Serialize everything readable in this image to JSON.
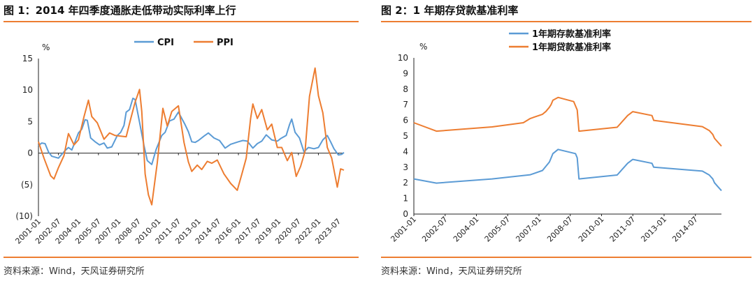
{
  "left": {
    "title": "图 1：2014 年四季度通胀走低带动实际利率上行",
    "source": "资料来源：Wind，天风证券研究所"
  },
  "right": {
    "title": "图 2：1 年期存贷款基准利率",
    "source": "资料来源：Wind，天风证券研究所"
  },
  "chart_data": [
    {
      "type": "line",
      "title": "",
      "ylabel": "%",
      "ylim": [
        -10,
        15
      ],
      "yticks": [
        15,
        10,
        5,
        0,
        -5,
        -10
      ],
      "ytick_labels": [
        "15",
        "10",
        "5",
        "0",
        "(5)",
        "(10)"
      ],
      "x_categories": [
        "2001-01",
        "2002-07",
        "2004-01",
        "2005-07",
        "2007-01",
        "2008-07",
        "2010-01",
        "2011-07",
        "2013-01",
        "2014-07",
        "2016-01",
        "2017-07",
        "2019-01",
        "2020-07",
        "2022-01",
        "2023-07"
      ],
      "x_range": [
        "2001-01",
        "2023-12"
      ],
      "legend_position": "top-center",
      "grid": false,
      "colors": {
        "CPI": "#5b9bd5",
        "PPI": "#ed7d31"
      },
      "series": [
        {
          "name": "CPI",
          "x": [
            "2001-01",
            "2001-04",
            "2001-07",
            "2001-10",
            "2002-01",
            "2002-07",
            "2003-01",
            "2003-04",
            "2003-07",
            "2003-10",
            "2004-01",
            "2004-04",
            "2004-07",
            "2004-09",
            "2004-12",
            "2005-04",
            "2005-08",
            "2005-12",
            "2006-03",
            "2006-07",
            "2006-12",
            "2007-03",
            "2007-06",
            "2007-08",
            "2007-11",
            "2008-02",
            "2008-04",
            "2008-08",
            "2008-12",
            "2009-03",
            "2009-07",
            "2009-11",
            "2010-04",
            "2010-07",
            "2010-11",
            "2011-03",
            "2011-07",
            "2011-10",
            "2012-01",
            "2012-04",
            "2012-07",
            "2012-10",
            "2013-01",
            "2013-06",
            "2013-10",
            "2014-03",
            "2014-08",
            "2015-01",
            "2015-06",
            "2016-01",
            "2016-05",
            "2016-09",
            "2017-02",
            "2017-06",
            "2017-10",
            "2018-02",
            "2018-07",
            "2018-12",
            "2019-03",
            "2019-08",
            "2019-11",
            "2020-01",
            "2020-04",
            "2020-08",
            "2020-12",
            "2021-04",
            "2021-09",
            "2022-01",
            "2022-05",
            "2022-09",
            "2022-12",
            "2023-03",
            "2023-07",
            "2023-10",
            "2023-12"
          ],
          "y": [
            1.2,
            1.6,
            1.5,
            0.2,
            -0.5,
            -0.8,
            0.4,
            0.9,
            0.5,
            1.8,
            3.2,
            3.8,
            5.3,
            5.2,
            2.4,
            1.8,
            1.3,
            1.6,
            0.8,
            1.0,
            2.8,
            3.3,
            4.4,
            6.5,
            6.9,
            8.7,
            8.5,
            4.9,
            1.2,
            -1.2,
            -1.8,
            0.6,
            2.8,
            3.3,
            5.1,
            5.4,
            6.5,
            5.5,
            4.5,
            3.4,
            1.8,
            1.7,
            2.0,
            2.7,
            3.2,
            2.4,
            2.0,
            0.8,
            1.4,
            1.8,
            2.0,
            1.9,
            0.8,
            1.5,
            1.9,
            2.9,
            2.1,
            1.9,
            2.3,
            2.8,
            4.5,
            5.4,
            3.3,
            2.4,
            0.2,
            0.9,
            0.7,
            0.9,
            2.1,
            2.8,
            1.8,
            0.7,
            -0.3,
            -0.2,
            0.1
          ]
        },
        {
          "name": "PPI",
          "x": [
            "2001-01",
            "2001-06",
            "2001-12",
            "2002-03",
            "2002-07",
            "2002-12",
            "2003-04",
            "2003-09",
            "2004-01",
            "2004-06",
            "2004-10",
            "2005-01",
            "2005-06",
            "2005-12",
            "2006-05",
            "2006-10",
            "2007-03",
            "2007-08",
            "2007-12",
            "2008-04",
            "2008-08",
            "2008-10",
            "2009-01",
            "2009-04",
            "2009-07",
            "2009-12",
            "2010-05",
            "2010-09",
            "2011-01",
            "2011-07",
            "2011-12",
            "2012-04",
            "2012-07",
            "2012-12",
            "2013-04",
            "2013-09",
            "2014-01",
            "2014-06",
            "2014-12",
            "2015-06",
            "2015-12",
            "2016-04",
            "2016-08",
            "2016-12",
            "2017-02",
            "2017-06",
            "2017-10",
            "2018-03",
            "2018-07",
            "2018-12",
            "2019-04",
            "2019-09",
            "2020-01",
            "2020-05",
            "2020-09",
            "2021-01",
            "2021-05",
            "2021-10",
            "2022-01",
            "2022-05",
            "2022-09",
            "2023-01",
            "2023-06",
            "2023-09",
            "2023-12"
          ],
          "y": [
            1.8,
            -0.8,
            -3.6,
            -4.1,
            -2.3,
            -0.4,
            3.1,
            1.3,
            2.1,
            5.8,
            8.4,
            5.8,
            4.8,
            2.2,
            3.2,
            2.8,
            2.7,
            2.6,
            5.4,
            8.1,
            10.1,
            6.6,
            -3.3,
            -6.6,
            -8.2,
            -1.5,
            7.1,
            4.3,
            6.6,
            7.5,
            1.7,
            -1.4,
            -2.9,
            -1.9,
            -2.6,
            -1.3,
            -1.6,
            -1.1,
            -3.3,
            -4.8,
            -5.9,
            -3.4,
            -0.8,
            5.5,
            7.8,
            5.5,
            6.9,
            3.7,
            4.6,
            0.9,
            0.9,
            -1.2,
            0.1,
            -3.7,
            -2.1,
            0.3,
            9.0,
            13.5,
            9.1,
            6.4,
            0.9,
            -0.8,
            -5.4,
            -2.5,
            -2.7
          ]
        }
      ]
    },
    {
      "type": "line",
      "title": "",
      "ylabel": "%",
      "ylim": [
        0,
        10
      ],
      "yticks": [
        0,
        1,
        2,
        3,
        4,
        5,
        6,
        7,
        8,
        9,
        10
      ],
      "x_categories": [
        "2001-01",
        "2002-07",
        "2004-01",
        "2005-07",
        "2007-01",
        "2008-07",
        "2010-01",
        "2011-07",
        "2013-01",
        "2014-07"
      ],
      "x_range": [
        "2001-01",
        "2015-10"
      ],
      "legend_position": "top-center",
      "grid": false,
      "colors": {
        "1年期存款基准利率": "#5b9bd5",
        "1年期贷款基准利率": "#ed7d31"
      },
      "series": [
        {
          "name": "1年期存款基准利率",
          "x": [
            "2001-01",
            "2002-02",
            "2004-10",
            "2006-08",
            "2007-03",
            "2007-05",
            "2007-07",
            "2007-08",
            "2007-09",
            "2007-12",
            "2008-10",
            "2008-11",
            "2008-12",
            "2010-10",
            "2010-12",
            "2011-02",
            "2011-04",
            "2011-07",
            "2012-06",
            "2012-07",
            "2014-11",
            "2015-03",
            "2015-05",
            "2015-06",
            "2015-08",
            "2015-10"
          ],
          "y": [
            2.25,
            1.98,
            2.25,
            2.52,
            2.79,
            3.06,
            3.33,
            3.6,
            3.87,
            4.14,
            3.87,
            3.6,
            2.25,
            2.5,
            2.75,
            3.0,
            3.25,
            3.5,
            3.25,
            3.0,
            2.75,
            2.5,
            2.25,
            2.0,
            1.75,
            1.5
          ]
        },
        {
          "name": "1年期贷款基准利率",
          "x": [
            "2001-01",
            "2002-02",
            "2004-10",
            "2006-04",
            "2006-08",
            "2007-03",
            "2007-05",
            "2007-07",
            "2007-08",
            "2007-09",
            "2007-12",
            "2008-09",
            "2008-10",
            "2008-11",
            "2008-12",
            "2010-10",
            "2010-12",
            "2011-02",
            "2011-04",
            "2011-07",
            "2012-06",
            "2012-07",
            "2014-11",
            "2015-03",
            "2015-05",
            "2015-06",
            "2015-08",
            "2015-10"
          ],
          "y": [
            5.85,
            5.31,
            5.58,
            5.85,
            6.12,
            6.39,
            6.57,
            6.84,
            7.02,
            7.29,
            7.47,
            7.2,
            6.93,
            6.66,
            5.31,
            5.56,
            5.81,
            6.06,
            6.31,
            6.56,
            6.31,
            6.0,
            5.6,
            5.35,
            5.1,
            4.85,
            4.6,
            4.35
          ]
        }
      ]
    }
  ]
}
